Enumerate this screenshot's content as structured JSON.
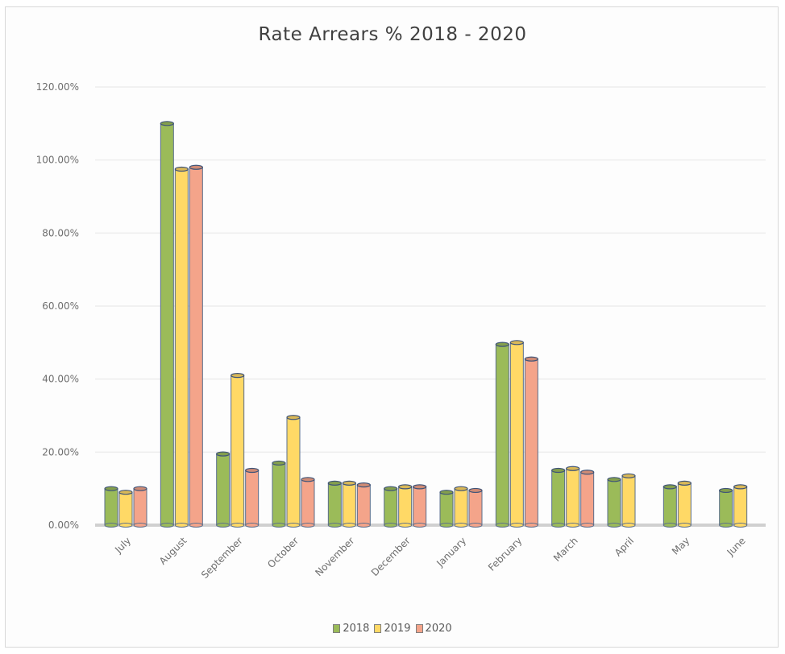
{
  "chart_data": {
    "type": "bar",
    "title": "Rate Arrears % 2018 - 2020",
    "categories": [
      "July",
      "August",
      "September",
      "October",
      "November",
      "December",
      "January",
      "February",
      "March",
      "April",
      "May",
      "June"
    ],
    "series": [
      {
        "name": "2018",
        "color": "#9bbb59",
        "values": [
          10.0,
          110.0,
          19.5,
          17.0,
          11.5,
          10.0,
          9.0,
          49.5,
          15.0,
          12.5,
          10.5,
          9.5
        ]
      },
      {
        "name": "2019",
        "color": "#ffd966",
        "values": [
          9.0,
          97.5,
          41.0,
          29.5,
          11.5,
          10.5,
          10.0,
          50.0,
          15.5,
          13.5,
          11.5,
          10.5
        ]
      },
      {
        "name": "2020",
        "color": "#f4a48a",
        "values": [
          10.0,
          98.0,
          15.0,
          12.5,
          11.0,
          10.5,
          9.5,
          45.5,
          14.5,
          null,
          null,
          null
        ]
      }
    ],
    "yticks": [
      "0.00%",
      "20.00%",
      "40.00%",
      "60.00%",
      "80.00%",
      "100.00%",
      "120.00%"
    ],
    "ylim": [
      0,
      120
    ],
    "xlabel": "",
    "ylabel": "",
    "grid": true,
    "legend_position": "bottom"
  }
}
